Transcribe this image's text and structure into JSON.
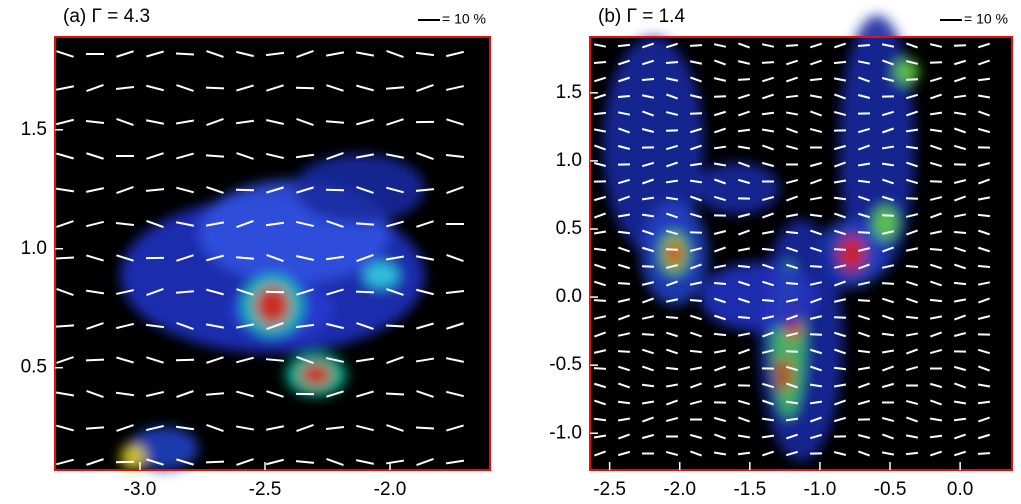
{
  "chart_data": [
    {
      "type": "image",
      "title": "(a) Γ = 4.3",
      "scale_label": "= 10 %",
      "xlim": [
        -3.34,
        -1.6
      ],
      "ylim": [
        0.07,
        1.89
      ],
      "xticks": [
        {
          "value": -3,
          "label": "-3.0"
        },
        -2.5,
        {
          "value": -2,
          "label": "-2.0"
        }
      ],
      "yticks": [
        0.5,
        {
          "value": 1,
          "label": "1.0"
        },
        1.5
      ]
    },
    {
      "type": "image",
      "title": "(b) Γ = 1.4",
      "scale_label": "= 10 %",
      "xlim": [
        -2.64,
        0.37
      ],
      "ylim": [
        -1.27,
        1.91
      ],
      "xticks": [
        -2.5,
        {
          "value": -2,
          "label": "-2.0"
        },
        -1.5,
        {
          "value": -1,
          "label": "-1.0"
        },
        -0.5,
        {
          "value": 0,
          "label": "0.0"
        }
      ],
      "yticks": [
        {
          "value": -1,
          "label": "-1.0"
        },
        -0.5,
        {
          "value": 0,
          "label": "0.0"
        },
        0.5,
        {
          "value": 1,
          "label": "1.0"
        },
        1.5
      ]
    }
  ]
}
